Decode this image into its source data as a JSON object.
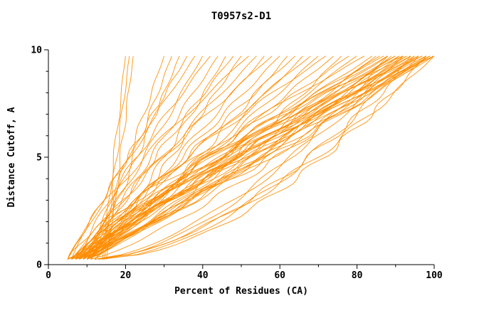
{
  "chart_data": {
    "type": "line",
    "title": "T0957s2-D1",
    "xlabel": "Percent of Residues (CA)",
    "ylabel": "Distance Cutoff, A",
    "xlim": [
      0,
      100
    ],
    "ylim": [
      0,
      10
    ],
    "x_ticks": [
      0,
      20,
      40,
      60,
      80,
      100
    ],
    "x_minor_ticks": [
      10,
      30,
      50,
      70,
      90
    ],
    "y_ticks": [
      0,
      5,
      10
    ],
    "y_minor_ticks": [
      1,
      2,
      3,
      4,
      6,
      7,
      8,
      9
    ],
    "grid": false,
    "legend": "none",
    "background": "#ffffff",
    "axis_color": "#000000",
    "line_color": "#ff8c00",
    "curve_encoding": "each curve = [x_at_cutoff_0, x_at_cutoff_10, shape_exponent]; x(y) = x0 + (x10 - x0) * (y/10)^a",
    "curves": [
      [
        14,
        20,
        1.0
      ],
      [
        14.5,
        21,
        1.05
      ],
      [
        15,
        22,
        0.95
      ],
      [
        9,
        30,
        0.85
      ],
      [
        10,
        32,
        0.9
      ],
      [
        11,
        34,
        0.95
      ],
      [
        5,
        36,
        1.0
      ],
      [
        6,
        38,
        1.1
      ],
      [
        7,
        40,
        0.9
      ],
      [
        8,
        42,
        1.2
      ],
      [
        9,
        44,
        1.0
      ],
      [
        10,
        46,
        0.85
      ],
      [
        11,
        48,
        1.15
      ],
      [
        12,
        50,
        0.95
      ],
      [
        5,
        52,
        1.25
      ],
      [
        6,
        54,
        1.05
      ],
      [
        7,
        56,
        0.9
      ],
      [
        8,
        58,
        1.2
      ],
      [
        9,
        60,
        1.0
      ],
      [
        10,
        62,
        0.85
      ],
      [
        11,
        64,
        1.1
      ],
      [
        12,
        66,
        0.95
      ],
      [
        6,
        68,
        1.05
      ],
      [
        7,
        70,
        0.9
      ],
      [
        8,
        72,
        1.2
      ],
      [
        9,
        74,
        1.0
      ],
      [
        10,
        76,
        0.8
      ],
      [
        11,
        78,
        1.15
      ],
      [
        6,
        80,
        0.95
      ],
      [
        7,
        82,
        1.25
      ],
      [
        8,
        84,
        1.05
      ],
      [
        9,
        85,
        0.9
      ],
      [
        10,
        86,
        1.1
      ],
      [
        11,
        87,
        1.3
      ],
      [
        5,
        88,
        0.95
      ],
      [
        6,
        88,
        1.15
      ],
      [
        7,
        89,
        0.8
      ],
      [
        8,
        90,
        1.0
      ],
      [
        9,
        90,
        1.2
      ],
      [
        10,
        91,
        0.9
      ],
      [
        11,
        91,
        1.1
      ],
      [
        5,
        92,
        1.3
      ],
      [
        6,
        92,
        0.85
      ],
      [
        7,
        93,
        1.05
      ],
      [
        8,
        93,
        1.25
      ],
      [
        9,
        94,
        0.95
      ],
      [
        10,
        94,
        1.15
      ],
      [
        11,
        95,
        0.8
      ],
      [
        5,
        95,
        1.0
      ],
      [
        6,
        96,
        1.2
      ],
      [
        7,
        96,
        0.9
      ],
      [
        8,
        97,
        1.1
      ],
      [
        9,
        97,
        1.3
      ],
      [
        10,
        98,
        0.95
      ],
      [
        11,
        98,
        1.15
      ],
      [
        5,
        99,
        0.85
      ],
      [
        6,
        99,
        1.05
      ],
      [
        7,
        100,
        1.25
      ],
      [
        8,
        100,
        0.9
      ],
      [
        9,
        100,
        1.1
      ],
      [
        10,
        99,
        1.0
      ],
      [
        12,
        96,
        0.6
      ],
      [
        13,
        98,
        0.55
      ],
      [
        12,
        92,
        0.65
      ],
      [
        13,
        88,
        0.6
      ],
      [
        14,
        94,
        0.58
      ],
      [
        12,
        100,
        0.62
      ]
    ]
  }
}
